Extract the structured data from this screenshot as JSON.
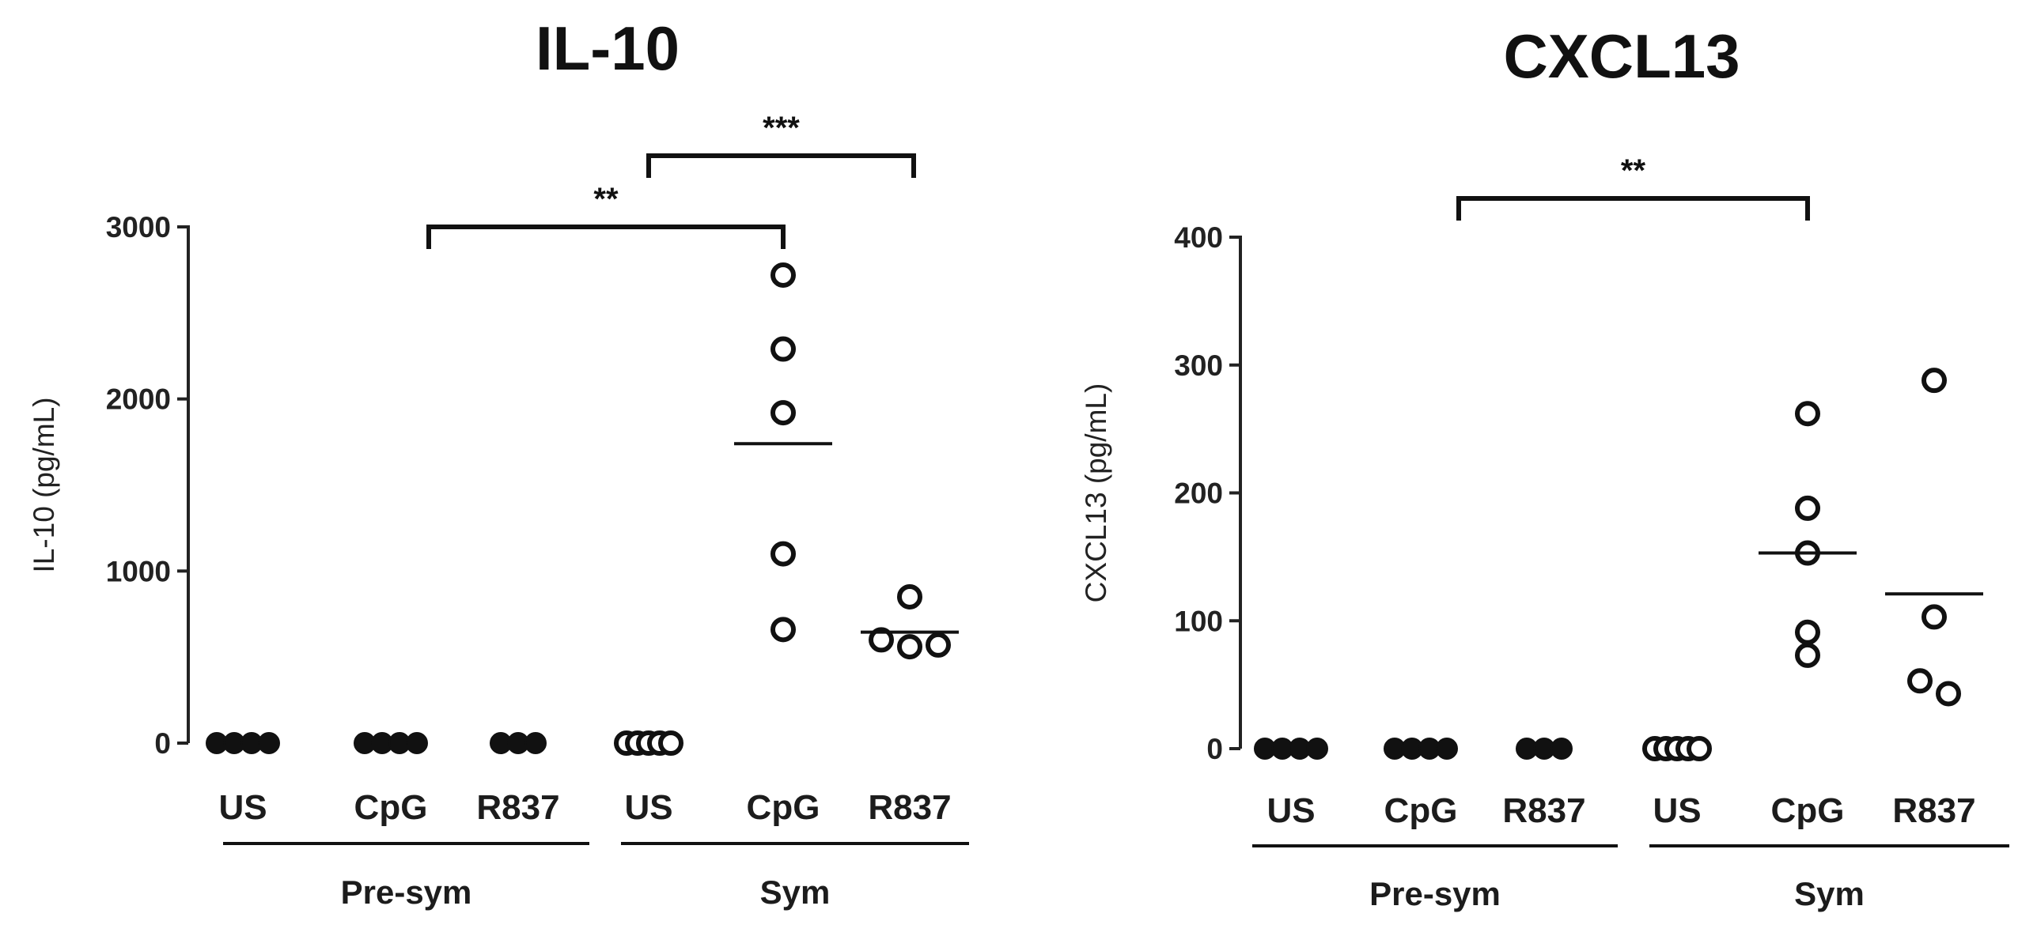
{
  "chart_data": [
    {
      "type": "scatter",
      "title": "IL-10",
      "ylabel": "IL-10 (pg/mL)",
      "xlabel": "",
      "ylim": [
        0,
        3000
      ],
      "yticks": [
        "0",
        "1000",
        "2000",
        "3000"
      ],
      "categories": [
        "US",
        "CpG",
        "R837",
        "US",
        "CpG",
        "R837"
      ],
      "groups": [
        {
          "label": "Pre-sym",
          "categories": [
            0,
            1,
            2
          ]
        },
        {
          "label": "Sym",
          "categories": [
            3,
            4,
            5
          ]
        }
      ],
      "series": [
        {
          "name": "Pre-sym US",
          "category": 0,
          "marker": "filled",
          "values": [
            0,
            0,
            0,
            0
          ]
        },
        {
          "name": "Pre-sym CpG",
          "category": 1,
          "marker": "filled",
          "values": [
            0,
            0,
            0,
            0
          ]
        },
        {
          "name": "Pre-sym R837",
          "category": 2,
          "marker": "filled",
          "values": [
            0,
            0,
            0
          ]
        },
        {
          "name": "Sym US",
          "category": 3,
          "marker": "open",
          "values": [
            0,
            0,
            0,
            0,
            0
          ]
        },
        {
          "name": "Sym CpG",
          "category": 4,
          "marker": "open",
          "values": [
            2720,
            2290,
            1920,
            1100,
            660
          ]
        },
        {
          "name": "Sym R837",
          "category": 5,
          "marker": "open",
          "values": [
            850,
            600,
            560,
            570
          ]
        }
      ],
      "means": [
        {
          "category": 4,
          "value": 1740
        },
        {
          "category": 5,
          "value": 645
        }
      ],
      "significance": [
        {
          "from": 1,
          "to": 4,
          "label": "**",
          "level": 1
        },
        {
          "from": 3,
          "to": 5,
          "label": "***",
          "level": 2
        }
      ]
    },
    {
      "type": "scatter",
      "title": "CXCL13",
      "ylabel": "CXCL13 (pg/mL)",
      "xlabel": "",
      "ylim": [
        0,
        400
      ],
      "yticks": [
        "0",
        "100",
        "200",
        "300",
        "400"
      ],
      "categories": [
        "US",
        "CpG",
        "R837",
        "US",
        "CpG",
        "R837"
      ],
      "groups": [
        {
          "label": "Pre-sym",
          "categories": [
            0,
            1,
            2
          ]
        },
        {
          "label": "Sym",
          "categories": [
            3,
            4,
            5
          ]
        }
      ],
      "series": [
        {
          "name": "Pre-sym US",
          "category": 0,
          "marker": "filled",
          "values": [
            0,
            0,
            0,
            0
          ]
        },
        {
          "name": "Pre-sym CpG",
          "category": 1,
          "marker": "filled",
          "values": [
            0,
            0,
            0,
            0
          ]
        },
        {
          "name": "Pre-sym R837",
          "category": 2,
          "marker": "filled",
          "values": [
            0,
            0,
            0
          ]
        },
        {
          "name": "Sym US",
          "category": 3,
          "marker": "open",
          "values": [
            0,
            0,
            0,
            0,
            0
          ]
        },
        {
          "name": "Sym CpG",
          "category": 4,
          "marker": "open",
          "values": [
            262,
            188,
            153,
            91,
            73
          ]
        },
        {
          "name": "Sym R837",
          "category": 5,
          "marker": "open",
          "values": [
            288,
            103,
            53,
            43
          ]
        }
      ],
      "means": [
        {
          "category": 4,
          "value": 153
        },
        {
          "category": 5,
          "value": 121
        }
      ],
      "significance": [
        {
          "from": 1,
          "to": 4,
          "label": "**",
          "level": 1
        }
      ]
    }
  ]
}
